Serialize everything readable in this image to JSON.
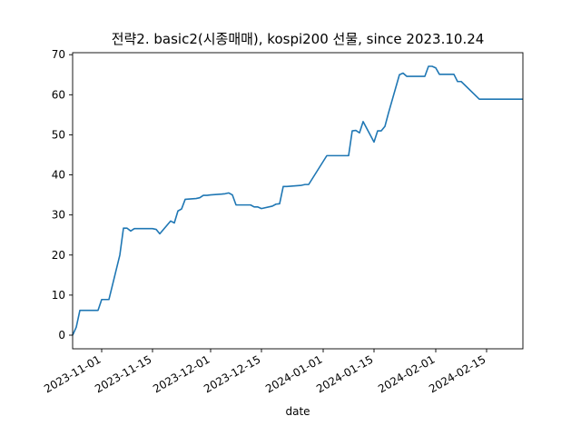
{
  "chart_data": {
    "type": "line",
    "title": "전략2. basic2(시종매매), kospi200 선물, since 2023.10.24",
    "xlabel": "date",
    "ylabel": "",
    "xlim": [
      "2023-10-24",
      "2024-02-25"
    ],
    "ylim": [
      -3.4,
      70.5
    ],
    "grid": false,
    "line_color": "#1f77b4",
    "x_ticks": [
      "2023-11-01",
      "2023-11-15",
      "2023-12-01",
      "2023-12-15",
      "2024-01-01",
      "2024-01-15",
      "2024-02-01",
      "2024-02-15"
    ],
    "y_ticks": [
      0,
      10,
      20,
      30,
      40,
      50,
      60,
      70
    ],
    "series": [
      {
        "x": [
          "2023-10-24",
          "2023-10-25",
          "2023-10-26",
          "2023-10-27",
          "2023-10-30",
          "2023-10-31",
          "2023-11-01",
          "2023-11-02",
          "2023-11-03",
          "2023-11-06",
          "2023-11-07",
          "2023-11-08",
          "2023-11-09",
          "2023-11-10",
          "2023-11-13",
          "2023-11-14",
          "2023-11-15",
          "2023-11-16",
          "2023-11-17",
          "2023-11-20",
          "2023-11-21",
          "2023-11-22",
          "2023-11-23",
          "2023-11-24",
          "2023-11-27",
          "2023-11-28",
          "2023-11-29",
          "2023-11-30",
          "2023-12-01",
          "2023-12-04",
          "2023-12-05",
          "2023-12-06",
          "2023-12-07",
          "2023-12-08",
          "2023-12-11",
          "2023-12-12",
          "2023-12-13",
          "2023-12-14",
          "2023-12-15",
          "2023-12-18",
          "2023-12-19",
          "2023-12-20",
          "2023-12-21",
          "2023-12-22",
          "2023-12-26",
          "2023-12-27",
          "2023-12-28",
          "2024-01-02",
          "2024-01-03",
          "2024-01-04",
          "2024-01-05",
          "2024-01-08",
          "2024-01-09",
          "2024-01-10",
          "2024-01-11",
          "2024-01-12",
          "2024-01-15",
          "2024-01-16",
          "2024-01-17",
          "2024-01-18",
          "2024-01-19",
          "2024-01-22",
          "2024-01-23",
          "2024-01-24",
          "2024-01-25",
          "2024-01-26",
          "2024-01-29",
          "2024-01-30",
          "2024-01-31",
          "2024-02-01",
          "2024-02-02",
          "2024-02-05",
          "2024-02-06",
          "2024-02-07",
          "2024-02-08",
          "2024-02-13",
          "2024-02-14",
          "2024-02-15",
          "2024-02-16",
          "2024-02-19",
          "2024-02-20",
          "2024-02-21",
          "2024-02-22",
          "2024-02-23",
          "2024-02-25"
        ],
        "y": [
          0,
          2,
          6.2,
          6.2,
          6.2,
          6.2,
          8.9,
          8.9,
          8.9,
          20,
          26.7,
          26.7,
          26,
          26.6,
          26.6,
          26.6,
          26.6,
          26.4,
          25.3,
          28.5,
          28,
          31,
          31.5,
          33.9,
          34.1,
          34.3,
          34.9,
          34.9,
          35,
          35.2,
          35.3,
          35.5,
          35,
          32.5,
          32.5,
          32.5,
          32,
          32,
          31.6,
          32.2,
          32.7,
          32.8,
          37.1,
          37.1,
          37.4,
          37.6,
          37.6,
          44.8,
          44.8,
          44.8,
          44.8,
          44.8,
          51,
          51.1,
          50.5,
          53.3,
          48.2,
          51,
          51,
          52.1,
          55.5,
          65,
          65.4,
          64.6,
          64.6,
          64.6,
          64.6,
          67.1,
          67.1,
          66.7,
          65.1,
          65.1,
          65.1,
          63.3,
          63.3,
          58.9,
          58.9,
          58.9,
          58.9,
          58.9,
          58.9,
          58.9,
          58.9,
          58.9,
          58.9
        ]
      }
    ]
  }
}
